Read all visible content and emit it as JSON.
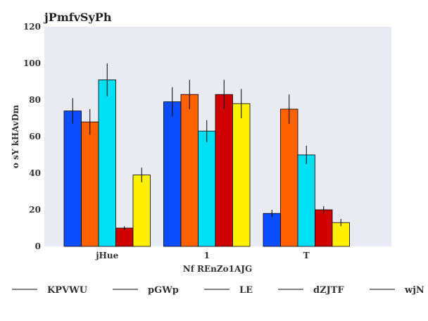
{
  "chart_data": {
    "type": "bar",
    "title": "jPmfvSyPh",
    "xlabel": "Nf REnZo1AJG",
    "ylabel": "o sY kHAvDm",
    "categories": [
      "jHue",
      "1",
      "T"
    ],
    "ylim": [
      0,
      120
    ],
    "yticks": [
      0,
      20,
      40,
      60,
      80,
      100,
      120
    ],
    "grid": false,
    "legend_position": "bottom",
    "series": [
      {
        "name": "KPVWU",
        "color": "#0a4cff",
        "values": [
          74,
          79,
          18
        ],
        "errors": [
          7,
          8,
          2
        ]
      },
      {
        "name": "pGWp",
        "color": "#ff6000",
        "values": [
          68,
          83,
          75
        ],
        "errors": [
          7,
          8,
          8
        ]
      },
      {
        "name": "LE",
        "color": "#00e0f5",
        "values": [
          91,
          63,
          50
        ],
        "errors": [
          9,
          6,
          5
        ]
      },
      {
        "name": "dZJTF",
        "color": "#d00000",
        "values": [
          10,
          83,
          20
        ],
        "errors": [
          1,
          8,
          2
        ]
      },
      {
        "name": "wjN",
        "color": "#fff000",
        "values": [
          39,
          78,
          13
        ],
        "errors": [
          4,
          8,
          2
        ]
      }
    ]
  }
}
